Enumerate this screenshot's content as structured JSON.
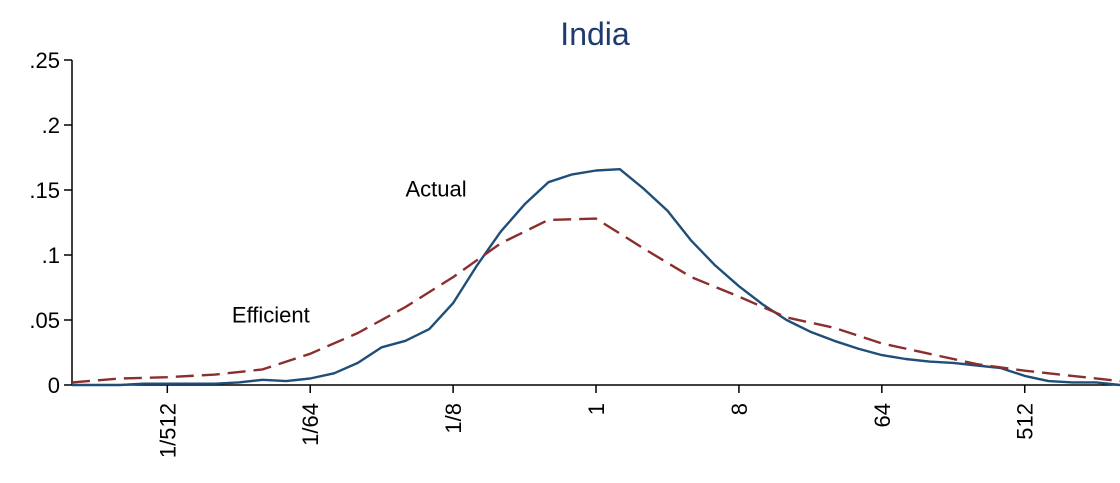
{
  "chart_data": {
    "type": "line",
    "title": "India",
    "xlabel": "",
    "ylabel": "",
    "x_scale": "log2",
    "x_tick_labels": [
      "1/512",
      "1/64",
      "1/8",
      "1",
      "8",
      "64",
      "512"
    ],
    "x_tick_values": [
      0.001953125,
      0.015625,
      0.125,
      1,
      8,
      64,
      512
    ],
    "y_tick_labels": [
      "0",
      ".05",
      ".1",
      ".15",
      ".2",
      ".25"
    ],
    "y_tick_values": [
      0,
      0.05,
      0.1,
      0.15,
      0.2,
      0.25
    ],
    "xlim": [
      0.000488,
      2048
    ],
    "ylim": [
      0,
      0.25
    ],
    "grid": false,
    "annotations": [
      {
        "text": "Actual",
        "x": 0.0625,
        "y": 0.145
      },
      {
        "text": "Efficient",
        "x": 0.005,
        "y": 0.048
      }
    ],
    "series": [
      {
        "key": "actual",
        "style": "solid",
        "color": "#1f4e79",
        "x": [
          0.000488,
          0.000691,
          0.000977,
          0.00138,
          0.00195,
          0.00276,
          0.00391,
          0.00552,
          0.00781,
          0.011,
          0.0156,
          0.0221,
          0.03125,
          0.0442,
          0.0625,
          0.0884,
          0.125,
          0.177,
          0.25,
          0.354,
          0.5,
          0.707,
          1,
          1.414,
          2,
          2.83,
          4,
          5.66,
          8,
          11.3,
          16,
          22.6,
          32,
          45.3,
          64,
          90.5,
          128,
          181,
          256,
          362,
          512,
          724,
          1024,
          1448,
          2048
        ],
        "values": [
          0.0,
          0.0,
          0.0,
          0.001,
          0.001,
          0.001,
          0.001,
          0.002,
          0.004,
          0.003,
          0.005,
          0.009,
          0.017,
          0.029,
          0.034,
          0.043,
          0.063,
          0.092,
          0.118,
          0.139,
          0.156,
          0.162,
          0.165,
          0.166,
          0.151,
          0.134,
          0.111,
          0.092,
          0.076,
          0.062,
          0.05,
          0.041,
          0.034,
          0.028,
          0.023,
          0.02,
          0.018,
          0.017,
          0.015,
          0.013,
          0.007,
          0.003,
          0.002,
          0.002,
          0.0
        ]
      },
      {
        "key": "efficient",
        "style": "dashed",
        "color": "#8b2e2e",
        "x": [
          0.000488,
          0.000977,
          0.00195,
          0.00391,
          0.00781,
          0.0156,
          0.03125,
          0.0625,
          0.125,
          0.25,
          0.5,
          1,
          2,
          4,
          8,
          16,
          32,
          64,
          128,
          256,
          512,
          1024,
          2048
        ],
        "values": [
          0.002,
          0.005,
          0.006,
          0.008,
          0.012,
          0.024,
          0.04,
          0.06,
          0.083,
          0.109,
          0.127,
          0.128,
          0.105,
          0.083,
          0.068,
          0.052,
          0.044,
          0.032,
          0.024,
          0.016,
          0.011,
          0.007,
          0.003
        ]
      }
    ]
  }
}
